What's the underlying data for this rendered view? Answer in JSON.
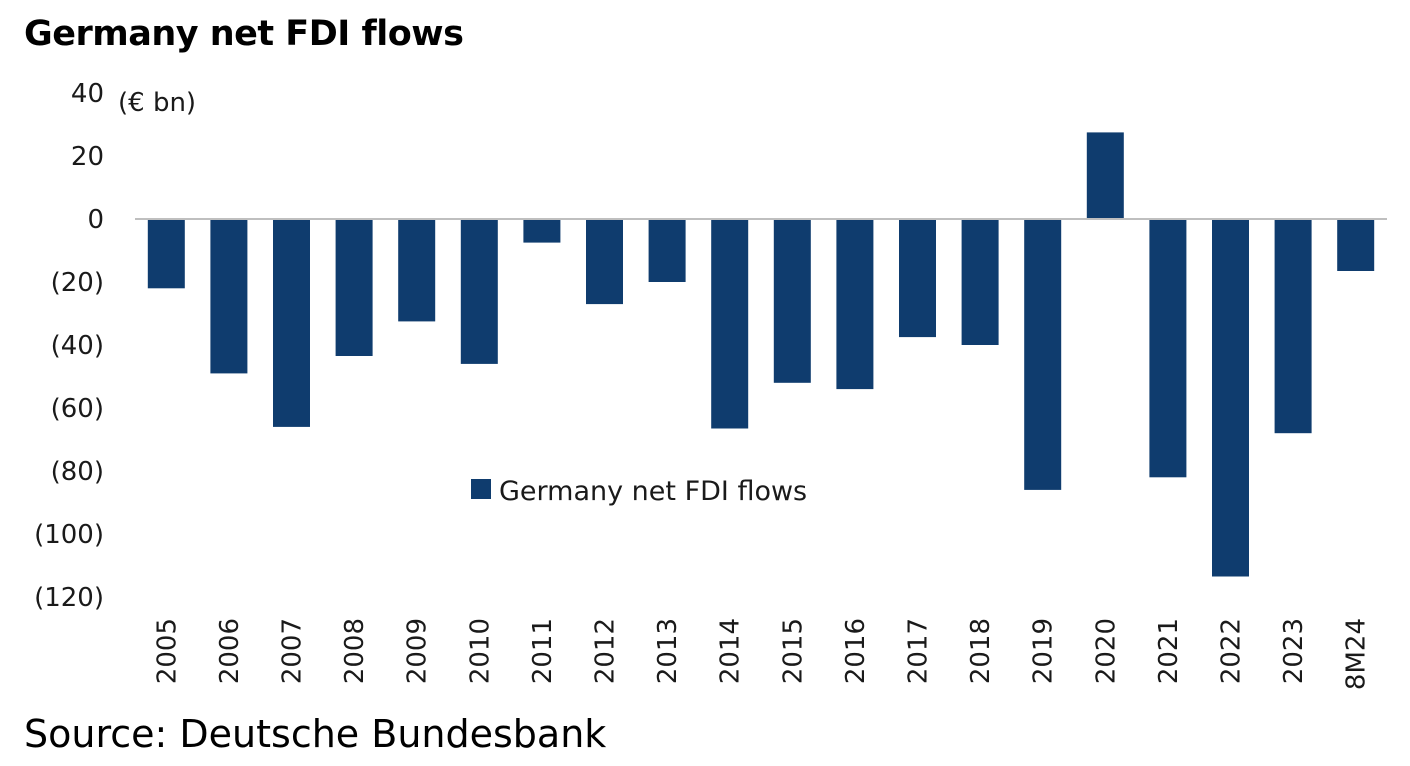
{
  "title": "Germany net FDI flows",
  "source": "Source: Deutsche Bundesbank",
  "colors": {
    "bar": "#0f3c6e",
    "axis": "#bfbfbf"
  },
  "chart_data": {
    "type": "bar",
    "title": "Germany net FDI flows",
    "ylabel": "(€ bn)",
    "xlabel": "",
    "ylim": [
      -120,
      40
    ],
    "yticks": [
      40,
      20,
      0,
      -20,
      -40,
      -60,
      -80,
      -100,
      -120
    ],
    "ytick_labels": [
      "40",
      "20",
      "0",
      "(20)",
      "(40)",
      "(60)",
      "(80)",
      "(100)",
      "(120)"
    ],
    "categories": [
      "2005",
      "2006",
      "2007",
      "2008",
      "2009",
      "2010",
      "2011",
      "2012",
      "2013",
      "2014",
      "2015",
      "2016",
      "2017",
      "2018",
      "2019",
      "2020",
      "2021",
      "2022",
      "2023",
      "8M24"
    ],
    "series": [
      {
        "name": "Germany net FDI flows",
        "values": [
          -22,
          -49,
          -66,
          -43.5,
          -32.5,
          -46,
          -7.5,
          -27,
          -20,
          -66.5,
          -52,
          -54,
          -37.5,
          -40,
          -86,
          27.5,
          -82,
          -113.5,
          -68,
          -16.5
        ]
      }
    ],
    "legend": "center",
    "grid": false
  }
}
